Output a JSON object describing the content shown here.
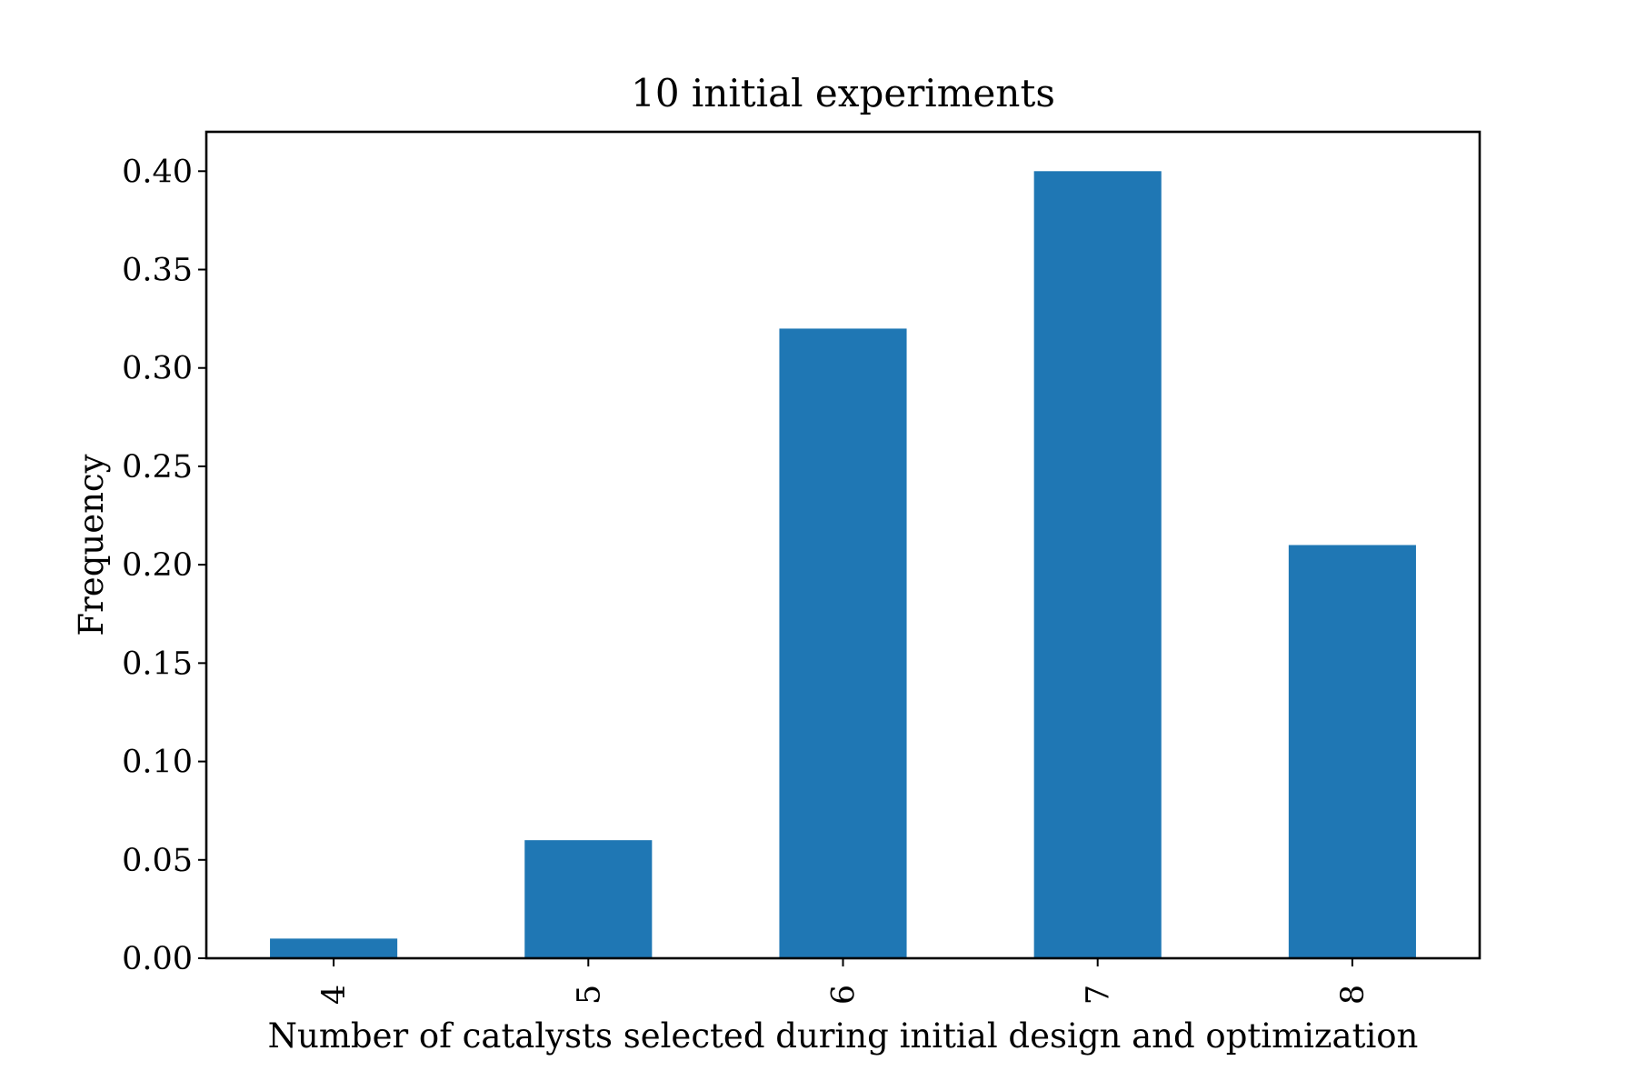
{
  "chart_data": {
    "type": "bar",
    "title": "10 initial experiments",
    "xlabel": "Number of catalysts selected during initial design and optimization",
    "ylabel": "Frequency",
    "categories": [
      "4",
      "5",
      "6",
      "7",
      "8"
    ],
    "values": [
      0.01,
      0.06,
      0.32,
      0.4,
      0.21
    ],
    "ylim": [
      0,
      0.42
    ],
    "yticks": [
      "0.00",
      "0.05",
      "0.10",
      "0.15",
      "0.20",
      "0.25",
      "0.30",
      "0.35",
      "0.40"
    ],
    "xtick_rotation": "vertical",
    "grid": false,
    "legend": "none",
    "colors": {
      "bar": "#1f77b4",
      "axis": "#000000"
    }
  }
}
